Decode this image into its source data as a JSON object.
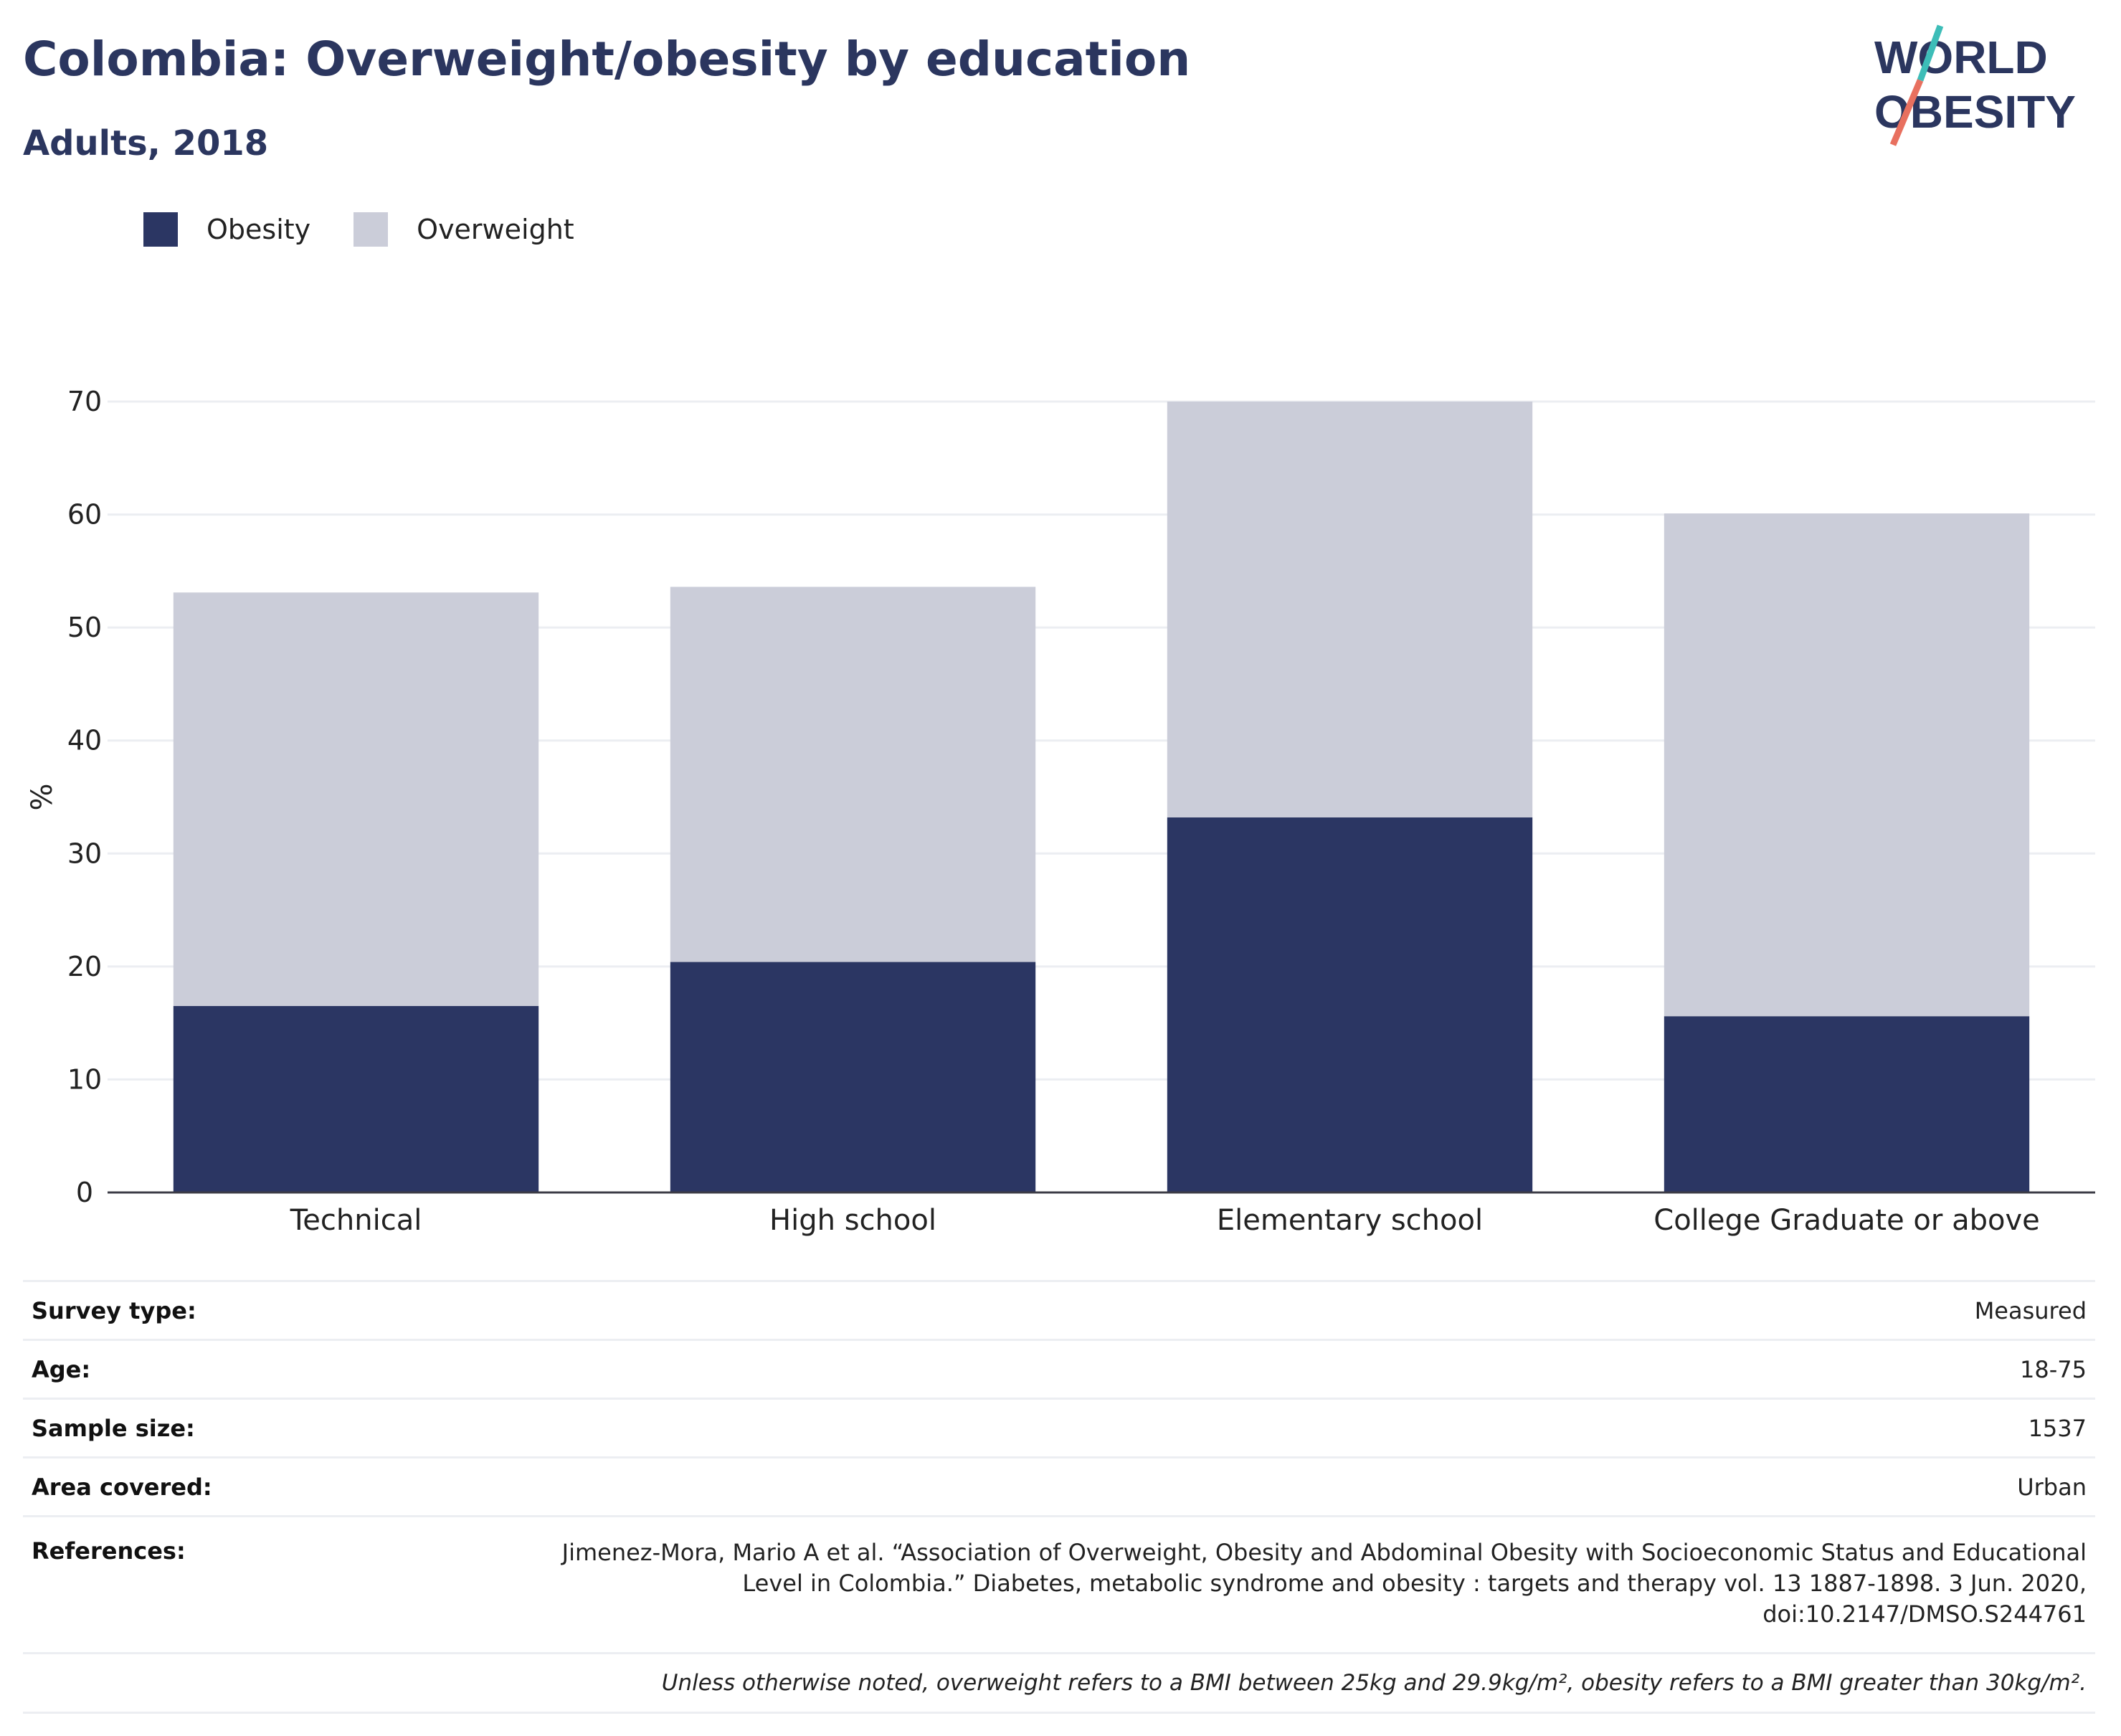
{
  "header": {
    "title": "Colombia: Overweight/obesity by education",
    "subtitle": "Adults, 2018",
    "logo_line1": "WORLD",
    "logo_line2": "OBESITY"
  },
  "legend": [
    {
      "label": "Obesity",
      "color": "#2b3663"
    },
    {
      "label": "Overweight",
      "color": "#cbcdd9"
    }
  ],
  "chart_data": {
    "type": "bar",
    "stacked": true,
    "categories": [
      "Technical",
      "High school",
      "Elementary school",
      "College Graduate or above"
    ],
    "series": [
      {
        "name": "Obesity",
        "color": "#2b3663",
        "values": [
          16.5,
          20.4,
          33.2,
          15.6
        ]
      },
      {
        "name": "Overweight",
        "color": "#cbcdd9",
        "values": [
          36.6,
          33.2,
          36.8,
          44.5
        ]
      }
    ],
    "ylabel": "%",
    "xlabel": "",
    "ylim": [
      0,
      70
    ],
    "yticks": [
      0,
      10,
      20,
      30,
      40,
      50,
      60,
      70
    ],
    "grid": true,
    "legend_position": "top-left"
  },
  "info": {
    "rows": [
      {
        "label": "Survey type:",
        "value": "Measured"
      },
      {
        "label": "Age:",
        "value": "18-75"
      },
      {
        "label": "Sample size:",
        "value": "1537"
      },
      {
        "label": "Area covered:",
        "value": "Urban"
      }
    ],
    "references_label": "References:",
    "references_line1": "Jimenez-Mora, Mario A et al. “Association of Overweight, Obesity and Abdominal Obesity with Socioeconomic Status and Educational",
    "references_line2": "Level in Colombia.” Diabetes, metabolic syndrome and obesity : targets and therapy vol. 13 1887-1898. 3 Jun. 2020,",
    "references_line3": "doi:10.2147/DMSO.S244761",
    "note": "Unless otherwise noted, overweight refers to a BMI between 25kg and 29.9kg/m², obesity refers to a BMI greater than 30kg/m²."
  }
}
